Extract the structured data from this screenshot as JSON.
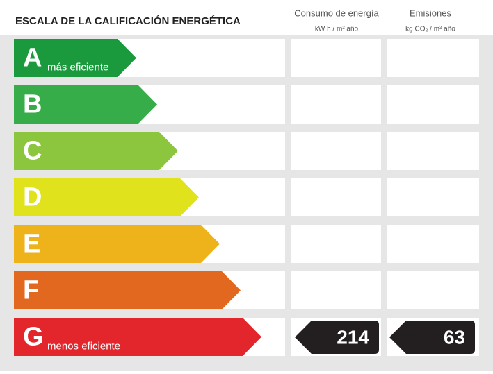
{
  "header": {
    "title": "ESCALA DE LA CALIFICACIÓN ENERGÉTICA",
    "columns": [
      {
        "title": "Consumo de energía",
        "unit": "kW h / m² año"
      },
      {
        "title": "Emisiones",
        "unit": "kg CO₂ / m² año"
      }
    ]
  },
  "ratings": [
    {
      "letter": "A",
      "label": "más eficiente",
      "color": "#1a9a3d"
    },
    {
      "letter": "B",
      "color": "#36ad49"
    },
    {
      "letter": "C",
      "color": "#8cc63e"
    },
    {
      "letter": "D",
      "color": "#e0e31b"
    },
    {
      "letter": "E",
      "color": "#eeb21a"
    },
    {
      "letter": "F",
      "color": "#e2681f"
    },
    {
      "letter": "G",
      "label": "menos eficiente",
      "color": "#e3252c"
    }
  ],
  "result": {
    "consumo": 214,
    "emisiones": 63
  }
}
